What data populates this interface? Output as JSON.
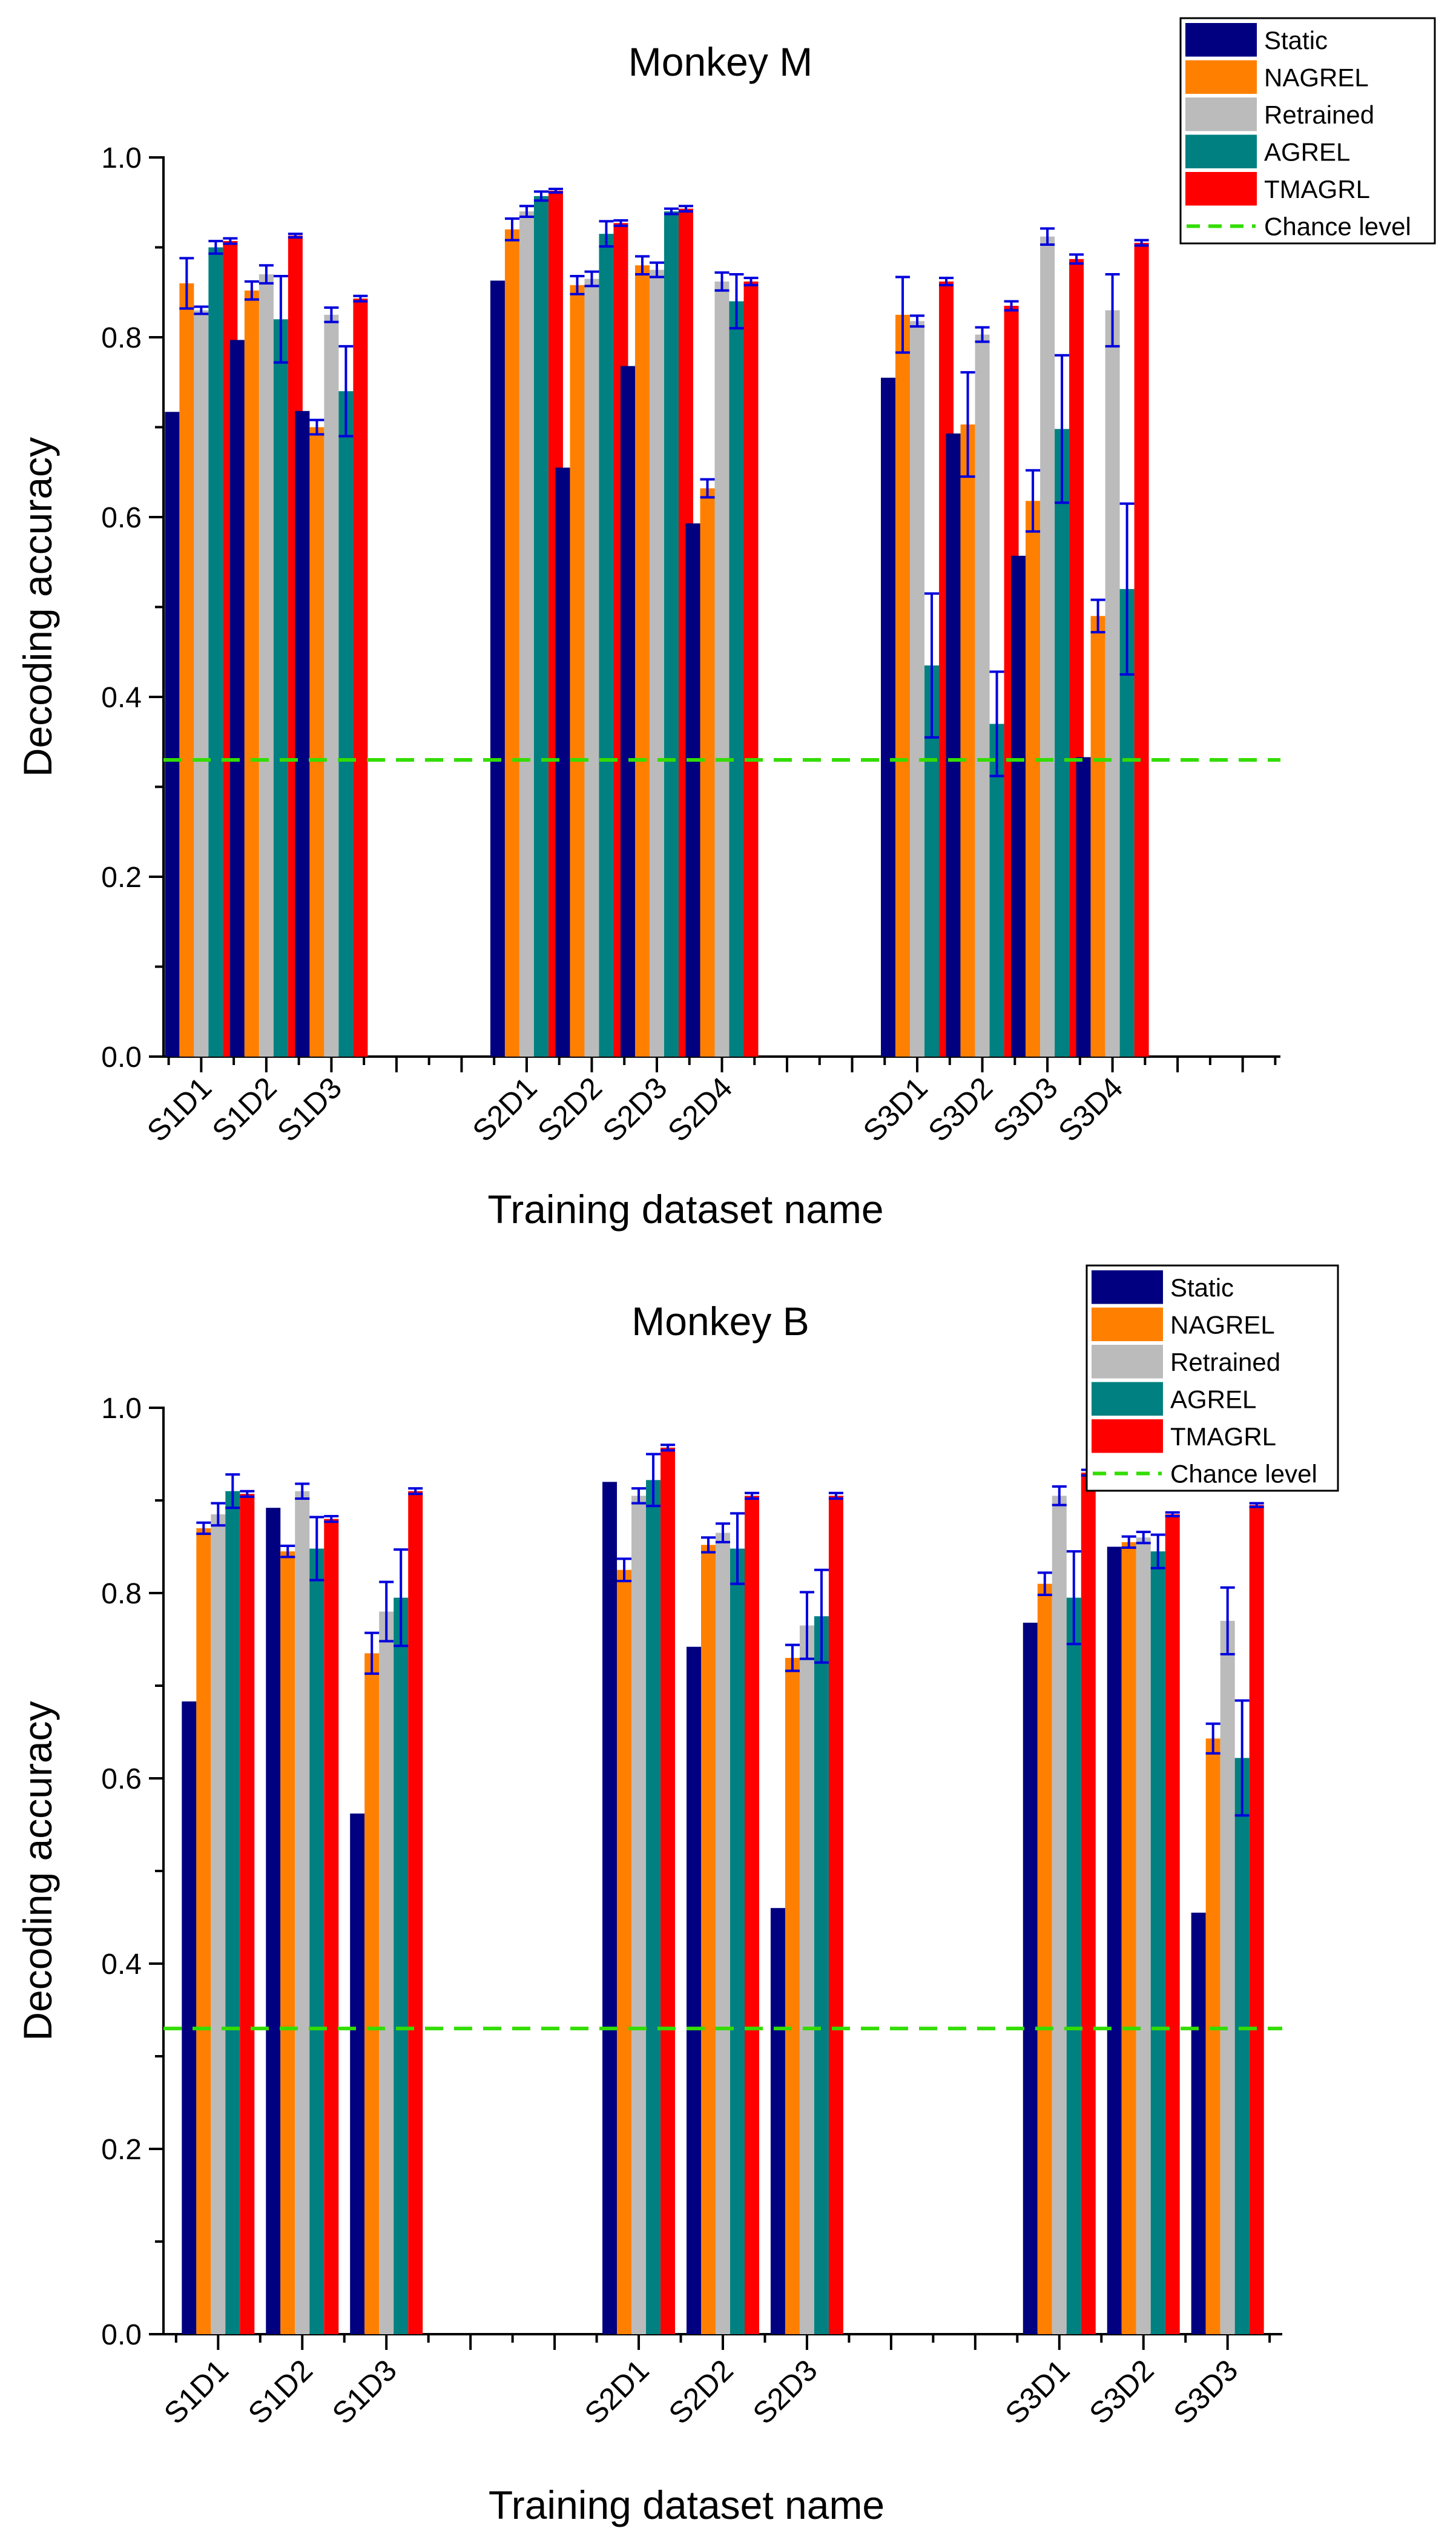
{
  "colors": {
    "Static": "#000080",
    "NAGREL": "#ff8000",
    "Retrained": "#bbbbbb",
    "AGREL": "#008080",
    "TMAGRL": "#ff0000",
    "chance": "#33dd00",
    "errorbar": "#0000dd"
  },
  "chart_data": [
    {
      "type": "bar",
      "title": "Monkey M",
      "xlabel": "Training dataset name",
      "ylabel": "Decoding accuracy",
      "ylim": [
        0,
        1.0
      ],
      "yticks": [
        "0.0",
        "0.2",
        "0.4",
        "0.6",
        "0.8",
        "1.0"
      ],
      "legend_position": "top-right",
      "series_names": [
        "Static",
        "NAGREL",
        "Retrained",
        "AGREL",
        "TMAGRL"
      ],
      "chance_label": "Chance level",
      "chance_level": 0.33,
      "groups": [
        {
          "categories": [
            "S1D1",
            "S1D2",
            "S1D3"
          ]
        },
        {
          "categories": [
            "S2D1",
            "S2D2",
            "S2D3",
            "S2D4"
          ]
        },
        {
          "categories": [
            "S3D1",
            "S3D2",
            "S3D3",
            "S3D4"
          ]
        }
      ],
      "values": [
        [
          0.717,
          0.86,
          0.83,
          0.9,
          0.907
        ],
        [
          0.797,
          0.852,
          0.87,
          0.82,
          0.913
        ],
        [
          0.718,
          0.7,
          0.825,
          0.74,
          0.843
        ],
        [
          0.863,
          0.92,
          0.94,
          0.957,
          0.963
        ],
        [
          0.655,
          0.858,
          0.865,
          0.915,
          0.927
        ],
        [
          0.768,
          0.88,
          0.875,
          0.94,
          0.943
        ],
        [
          0.593,
          0.632,
          0.862,
          0.84,
          0.862
        ],
        [
          0.755,
          0.825,
          0.818,
          0.435,
          0.862
        ],
        [
          0.693,
          0.703,
          0.803,
          0.37,
          0.835
        ],
        [
          0.557,
          0.618,
          0.912,
          0.698,
          0.887
        ],
        [
          0.333,
          0.49,
          0.83,
          0.52,
          0.905
        ]
      ],
      "errors": [
        [
          0,
          0.028,
          0.004,
          0.007,
          0.003
        ],
        [
          0,
          0.01,
          0.01,
          0.048,
          0.002
        ],
        [
          0,
          0.008,
          0.008,
          0.05,
          0.003
        ],
        [
          0,
          0.012,
          0.006,
          0.005,
          0.002
        ],
        [
          0,
          0.01,
          0.008,
          0.014,
          0.003
        ],
        [
          0,
          0.01,
          0.008,
          0.003,
          0.003
        ],
        [
          0,
          0.01,
          0.01,
          0.03,
          0.004
        ],
        [
          0,
          0.042,
          0.006,
          0.08,
          0.004
        ],
        [
          0,
          0.058,
          0.008,
          0.058,
          0.005
        ],
        [
          0,
          0.034,
          0.009,
          0.082,
          0.005
        ],
        [
          0,
          0.018,
          0.04,
          0.095,
          0.003
        ]
      ]
    },
    {
      "type": "bar",
      "title": "Monkey B",
      "xlabel": "Training dataset name",
      "ylabel": "Decoding accuracy",
      "ylim": [
        0,
        1.0
      ],
      "yticks": [
        "0.0",
        "0.2",
        "0.4",
        "0.6",
        "0.8",
        "1.0"
      ],
      "legend_position": "top-right",
      "series_names": [
        "Static",
        "NAGREL",
        "Retrained",
        "AGREL",
        "TMAGRL"
      ],
      "chance_label": "Chance level",
      "chance_level": 0.33,
      "groups": [
        {
          "categories": [
            "S1D1",
            "S1D2",
            "S1D3"
          ]
        },
        {
          "categories": [
            "S2D1",
            "S2D2",
            "S2D3"
          ]
        },
        {
          "categories": [
            "S3D1",
            "S3D2",
            "S3D3"
          ]
        }
      ],
      "values": [
        [
          0.683,
          0.87,
          0.885,
          0.91,
          0.907
        ],
        [
          0.892,
          0.845,
          0.91,
          0.848,
          0.88
        ],
        [
          0.562,
          0.735,
          0.78,
          0.795,
          0.91
        ],
        [
          0.92,
          0.825,
          0.905,
          0.922,
          0.957
        ],
        [
          0.742,
          0.852,
          0.865,
          0.848,
          0.905
        ],
        [
          0.46,
          0.73,
          0.765,
          0.775,
          0.905
        ],
        [
          0.768,
          0.81,
          0.905,
          0.795,
          0.93
        ],
        [
          0.85,
          0.855,
          0.86,
          0.845,
          0.885
        ],
        [
          0.455,
          0.643,
          0.77,
          0.622,
          0.895
        ]
      ],
      "errors": [
        [
          0,
          0.006,
          0.012,
          0.018,
          0.003
        ],
        [
          0,
          0.006,
          0.008,
          0.034,
          0.003
        ],
        [
          0,
          0.022,
          0.032,
          0.052,
          0.003
        ],
        [
          0,
          0.012,
          0.008,
          0.028,
          0.003
        ],
        [
          0,
          0.008,
          0.01,
          0.038,
          0.003
        ],
        [
          0,
          0.014,
          0.036,
          0.05,
          0.003
        ],
        [
          0,
          0.012,
          0.01,
          0.05,
          0.003
        ],
        [
          0,
          0.006,
          0.006,
          0.018,
          0.002
        ],
        [
          0,
          0.016,
          0.036,
          0.062,
          0.002
        ]
      ]
    }
  ]
}
